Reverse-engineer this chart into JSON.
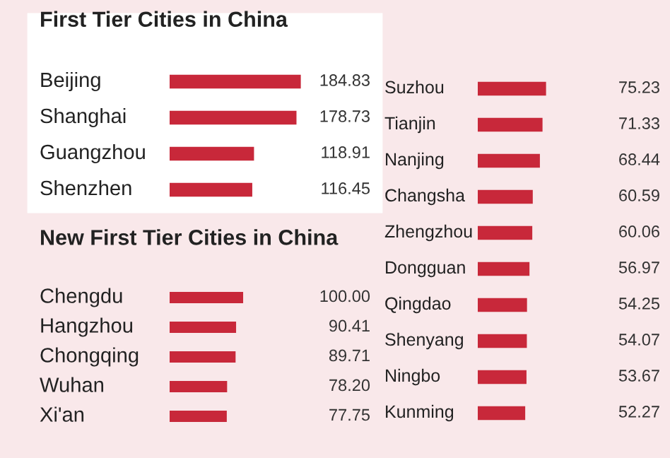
{
  "chart_data": [
    {
      "type": "bar",
      "orientation": "horizontal",
      "title": "First Tier Cities in China",
      "categories": [
        "Beijing",
        "Shanghai",
        "Guangzhou",
        "Shenzhen"
      ],
      "values": [
        184.83,
        178.73,
        118.91,
        116.45
      ],
      "color": "#c8283a",
      "value_labels": [
        "184.83",
        "178.73",
        "118.91",
        "116.45"
      ]
    },
    {
      "type": "bar",
      "orientation": "horizontal",
      "title": "New First Tier Cities in China",
      "categories": [
        "Chengdu",
        "Hangzhou",
        "Chongqing",
        "Wuhan",
        "Xi'an"
      ],
      "values": [
        100.0,
        90.41,
        89.71,
        78.2,
        77.75
      ],
      "color": "#c8283a",
      "value_labels": [
        "100.00",
        "90.41",
        "89.71",
        "78.20",
        "77.75"
      ]
    },
    {
      "type": "bar",
      "orientation": "horizontal",
      "categories": [
        "Suzhou",
        "Tianjin",
        "Nanjing",
        "Changsha",
        "Zhengzhou",
        "Dongguan",
        "Qingdao",
        "Shenyang",
        "Ningbo",
        "Kunming"
      ],
      "values": [
        75.23,
        71.33,
        68.44,
        60.59,
        60.06,
        56.97,
        54.25,
        54.07,
        53.67,
        52.27
      ],
      "color": "#c8283a",
      "value_labels": [
        "75.23",
        "71.33",
        "68.44",
        "60.59",
        "60.06",
        "56.97",
        "54.25",
        "54.07",
        "53.67",
        "52.27"
      ]
    }
  ]
}
